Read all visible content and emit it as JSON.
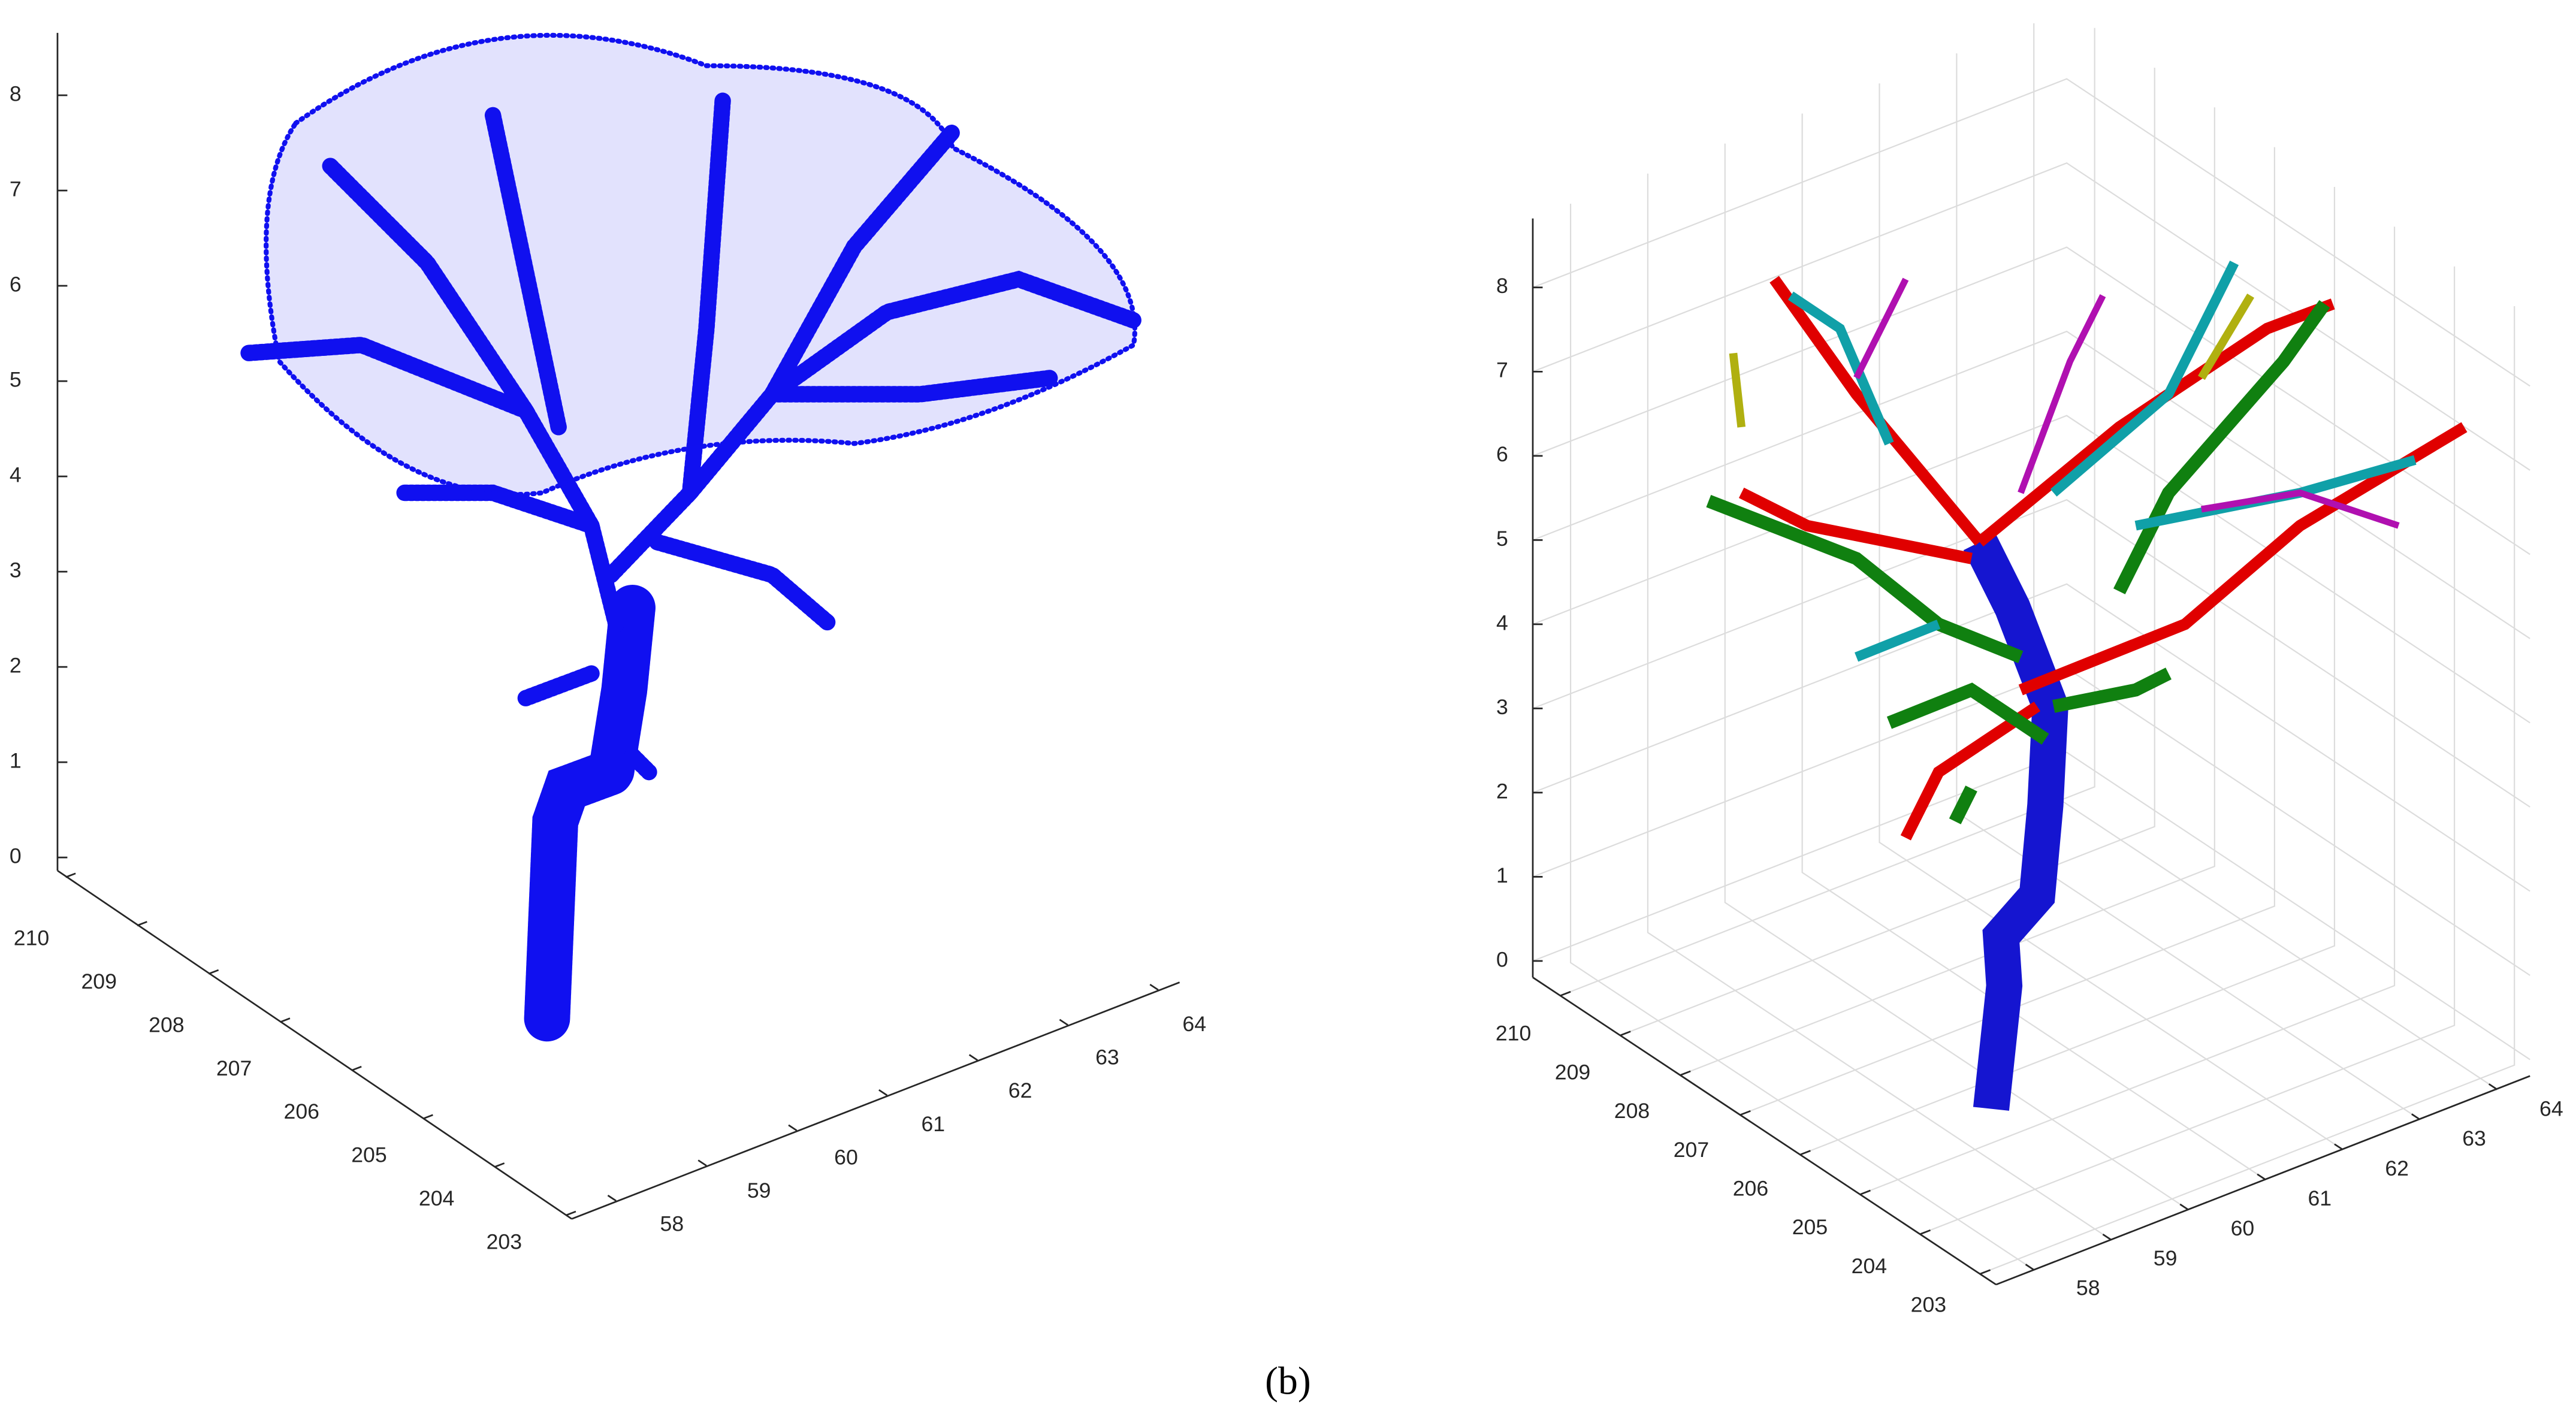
{
  "figure": {
    "panels": [
      {
        "zticks": [
          0,
          1,
          2,
          3,
          4,
          5,
          6,
          7,
          8
        ],
        "yticks": [
          203,
          204,
          205,
          206,
          207,
          208,
          209,
          210
        ],
        "xticks": [
          58,
          59,
          60,
          61,
          62,
          63,
          64
        ]
      },
      {
        "zticks": [
          0,
          1,
          2,
          3,
          4,
          5,
          6,
          7,
          8
        ],
        "yticks": [
          203,
          204,
          205,
          206,
          207,
          208,
          209,
          210
        ],
        "xticks": [
          58,
          59,
          60,
          61,
          62,
          63,
          64
        ]
      }
    ],
    "caption": "(b)"
  }
}
